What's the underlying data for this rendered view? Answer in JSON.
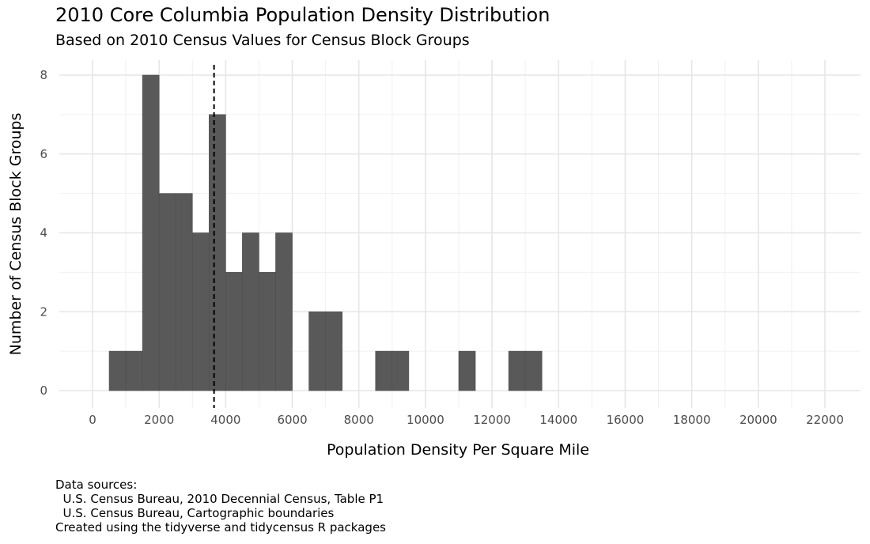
{
  "chart_data": {
    "type": "histogram",
    "title": "2010 Core Columbia Population Density Distribution",
    "subtitle": "Based on 2010 Census Values for Census Block Groups",
    "xlabel": "Population Density Per Square Mile",
    "ylabel": "Number of Census Block Groups",
    "xlim": [
      -1000,
      23000
    ],
    "ylim": [
      0,
      8
    ],
    "x_ticks": [
      0,
      2000,
      4000,
      6000,
      8000,
      10000,
      12000,
      14000,
      16000,
      18000,
      20000,
      22000
    ],
    "y_ticks": [
      0,
      2,
      4,
      6,
      8
    ],
    "bin_width": 500,
    "bins": [
      {
        "start": 500,
        "end": 1000,
        "count": 1
      },
      {
        "start": 1000,
        "end": 1500,
        "count": 1
      },
      {
        "start": 1500,
        "end": 2000,
        "count": 8
      },
      {
        "start": 2000,
        "end": 2500,
        "count": 5
      },
      {
        "start": 2500,
        "end": 3000,
        "count": 5
      },
      {
        "start": 3000,
        "end": 3500,
        "count": 4
      },
      {
        "start": 3500,
        "end": 4000,
        "count": 7
      },
      {
        "start": 4000,
        "end": 4500,
        "count": 3
      },
      {
        "start": 4500,
        "end": 5000,
        "count": 4
      },
      {
        "start": 5000,
        "end": 5500,
        "count": 3
      },
      {
        "start": 5500,
        "end": 6000,
        "count": 4
      },
      {
        "start": 6500,
        "end": 7000,
        "count": 2
      },
      {
        "start": 7000,
        "end": 7500,
        "count": 2
      },
      {
        "start": 8500,
        "end": 9000,
        "count": 1
      },
      {
        "start": 9000,
        "end": 9500,
        "count": 1
      },
      {
        "start": 11000,
        "end": 11500,
        "count": 1
      },
      {
        "start": 12500,
        "end": 13000,
        "count": 1
      },
      {
        "start": 13000,
        "end": 13500,
        "count": 1
      }
    ],
    "reference_line": {
      "x": 3650,
      "style": "dashed"
    },
    "bar_color": "#595959",
    "grid": true
  },
  "caption": [
    "Data sources:",
    "  U.S. Census Bureau, 2010 Decennial Census, Table P1",
    "  U.S. Census Bureau, Cartographic boundaries",
    "Created using the tidyverse and tidycensus R packages"
  ]
}
